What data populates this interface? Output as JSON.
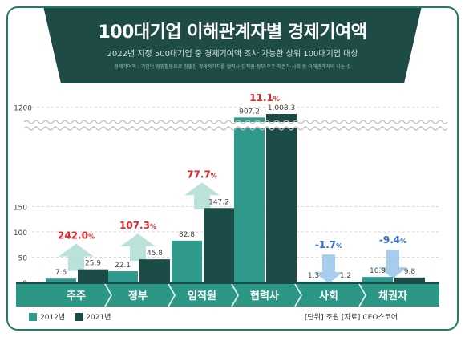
{
  "header": {
    "title": "100대기업 이해관계자별 경제기여액",
    "subtitle": "2022년 지정 500대기업 중 경제기여액 조사 가능한 상위 100대기업 대상",
    "note": "경제기여액 : 기업이 경영활동으로 창출한 경제적가치를 협력사·임직원·정부·주주·채권자·사회 등 이해관계자와 나눈 것"
  },
  "legend": {
    "series_2012": "2012년",
    "series_2021": "2021년"
  },
  "source": "[단위] 조원  [자료] CEO스코어",
  "colors": {
    "s2012": "#2f9a8c",
    "s2021": "#1c4c47",
    "accent_up": "#e0262b",
    "accent_down": "#2f6fc8",
    "arrow_up": "#b3dfd6",
    "arrow_down": "#9fc7ea",
    "band": "#2d9786"
  },
  "chart_data": {
    "type": "bar",
    "categories": [
      "주주",
      "정부",
      "임직원",
      "협력사",
      "사회",
      "채권자"
    ],
    "series": [
      {
        "name": "2012년",
        "values": [
          7.6,
          22.1,
          82.8,
          907.2,
          1.3,
          10.9
        ]
      },
      {
        "name": "2021년",
        "values": [
          25.9,
          45.8,
          147.2,
          1008.3,
          1.2,
          9.8
        ]
      }
    ],
    "value_labels_2012": [
      "7.6",
      "22.1",
      "82.8",
      "907.2",
      "1.3",
      "10.9"
    ],
    "value_labels_2021": [
      "25.9",
      "45.8",
      "147.2",
      "1,008.3",
      "1.2",
      "9.8"
    ],
    "changes": [
      "242.0",
      "107.3",
      "77.7",
      "11.1",
      "-1.7",
      "-9.4"
    ],
    "change_unit": "%",
    "y_ticks": [
      "0",
      "50",
      "100",
      "150",
      "1200"
    ],
    "y_tick_values": [
      0,
      50,
      100,
      150
    ],
    "y_break_tick_value": 1200,
    "ylim": [
      0,
      180
    ],
    "axis_break": true
  }
}
